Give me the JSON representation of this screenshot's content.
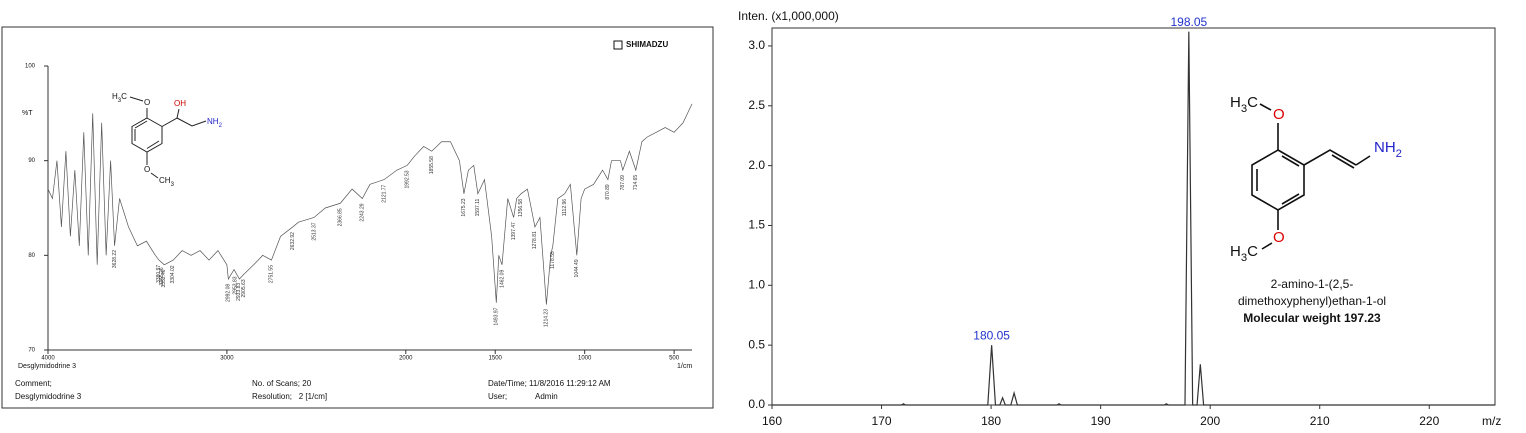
{
  "chart_data": [
    {
      "type": "line",
      "brand": "SHIMADZU",
      "y_label": "%T",
      "x_label": "1/cm",
      "sample_label": "Desglymidodrine 3",
      "xlim": [
        4000,
        400
      ],
      "ylim": [
        70,
        100
      ],
      "xticks": [
        4000,
        3000,
        2000,
        1500,
        1000,
        500
      ],
      "yticks": [
        70,
        80,
        90,
        100
      ],
      "color": "#555555",
      "x": [
        4000,
        3975,
        3950,
        3925,
        3900,
        3875,
        3850,
        3825,
        3800,
        3775,
        3750,
        3725,
        3700,
        3675,
        3650,
        3628,
        3600,
        3550,
        3500,
        3450,
        3400,
        3380,
        3350,
        3300,
        3250,
        3200,
        3150,
        3100,
        3050,
        3000,
        2992,
        2960,
        2930,
        2905,
        2850,
        2800,
        2751,
        2700,
        2632,
        2600,
        2513,
        2450,
        2366,
        2300,
        2243,
        2200,
        2121,
        2050,
        1992,
        1950,
        1900,
        1855,
        1800,
        1750,
        1700,
        1675,
        1650,
        1620,
        1597,
        1560,
        1520,
        1494,
        1480,
        1462,
        1430,
        1397,
        1380,
        1356,
        1320,
        1278,
        1250,
        1214,
        1190,
        1178,
        1150,
        1112,
        1080,
        1044,
        1020,
        1000,
        950,
        900,
        870,
        850,
        800,
        787,
        750,
        714,
        680,
        650,
        600,
        550,
        500,
        450,
        400
      ],
      "values": [
        87,
        86,
        90,
        83,
        91,
        82,
        89,
        81,
        93,
        80,
        95,
        79,
        94,
        80,
        90,
        81,
        86,
        83,
        81,
        81.5,
        80,
        79.5,
        79,
        79.5,
        80.5,
        80,
        80.5,
        79.5,
        80.5,
        79,
        77.5,
        78.5,
        77.5,
        78,
        79,
        80,
        79.5,
        82,
        83,
        83.5,
        84,
        85,
        85.5,
        87,
        86,
        87.5,
        88,
        89,
        89.5,
        90.5,
        91.5,
        91,
        92,
        92,
        90,
        86.5,
        89,
        89.5,
        86.5,
        88,
        82,
        75,
        80,
        79,
        86,
        84,
        86,
        86.5,
        87,
        83,
        84,
        74.8,
        80,
        81,
        86,
        86.5,
        87.5,
        80,
        86,
        87,
        87.5,
        89,
        88,
        90,
        90,
        89,
        91,
        89,
        92,
        92.5,
        93,
        93.5,
        93,
        94,
        96
      ],
      "peak_labels": [
        3628.22,
        3380.97,
        3365.26,
        3352.46,
        3304.02,
        2992.08,
        2953.83,
        2933.83,
        2905.63,
        2751.55,
        2632.92,
        2513.37,
        2366.85,
        2243.29,
        2121.77,
        1992.53,
        1855.58,
        1675.23,
        1597.11,
        1493.97,
        1462.09,
        1397.47,
        1356.58,
        1278.81,
        1214.23,
        1178.55,
        1112.96,
        1044.49,
        870.89,
        787.09,
        714.65
      ],
      "footer": {
        "comment_label": "Comment;",
        "comment": "Desglymidodrine 3",
        "scans": "No. of Scans; 20",
        "resolution": "Resolution;   2 [1/cm]",
        "datetime": "Date/Time; 11/8/2016 11:29:12 AM",
        "user_label": "User;",
        "user": "Admin"
      },
      "structure_atoms": [
        "H3C",
        "O",
        "OH",
        "NH2",
        "O",
        "CH3"
      ]
    },
    {
      "type": "line",
      "y_label": "Inten. (x1,000,000)",
      "x_label": "m/z",
      "xlim": [
        160,
        226
      ],
      "ylim": [
        0,
        3.15
      ],
      "xticks": [
        160,
        170,
        180,
        190,
        200,
        210,
        220
      ],
      "yticks": [
        {
          "value": 0,
          "label": "0.0"
        },
        0.5,
        {
          "value": 1,
          "label": "1.0"
        },
        1.5,
        {
          "value": 2,
          "label": "2.0"
        },
        2.5,
        {
          "value": 3,
          "label": "3.0"
        }
      ],
      "color": "#333333",
      "label_color": "#2233cc",
      "x": [
        160,
        171.8,
        172,
        172.2,
        179.7,
        180.05,
        180.4,
        180.8,
        181.05,
        181.3,
        181.8,
        182.1,
        182.4,
        186,
        186.2,
        186.4,
        195.8,
        196,
        196.2,
        197.7,
        198.05,
        198.4,
        198.8,
        199.1,
        199.4,
        226
      ],
      "values": [
        0,
        0,
        0.01,
        0,
        0,
        0.5,
        0,
        0,
        0.06,
        0,
        0,
        0.1,
        0,
        0,
        0.01,
        0,
        0,
        0.01,
        0,
        0,
        3.12,
        0,
        0,
        0.34,
        0,
        0
      ],
      "peak_labels": [
        180.05,
        198.05
      ],
      "structure_atoms": [
        "H3C",
        "O",
        "NH2",
        "O",
        "H3C"
      ],
      "caption": [
        "2-amino-1-(2,5-",
        "dimethoxyphenyl)ethan-1-ol"
      ],
      "molecular_weight": "Molecular weight 197.23"
    }
  ]
}
